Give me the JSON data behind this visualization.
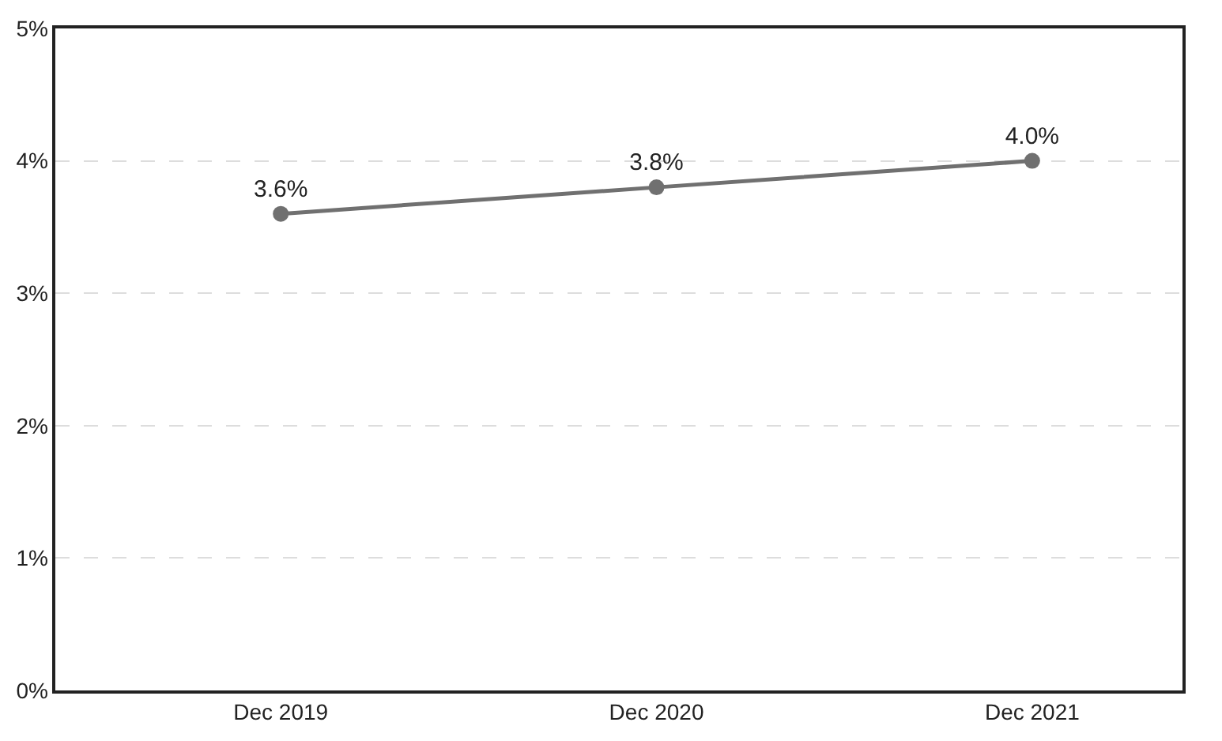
{
  "chart_data": {
    "type": "line",
    "categories": [
      "Dec 2019",
      "Dec 2020",
      "Dec 2021"
    ],
    "series": [
      {
        "color": "#707070",
        "values": [
          3.6,
          3.8,
          4.0
        ],
        "value_labels": [
          "3.6%",
          "3.8%",
          "4.0%"
        ]
      }
    ],
    "ylim": [
      0,
      5
    ],
    "yticks": [
      {
        "value": 0,
        "label": "0%"
      },
      {
        "value": 1,
        "label": "1%"
      },
      {
        "value": 2,
        "label": "2%"
      },
      {
        "value": 3,
        "label": "3%"
      },
      {
        "value": 4,
        "label": "4%"
      },
      {
        "value": 5,
        "label": "5%"
      }
    ],
    "grid": "y",
    "marker": "circle",
    "line_style": "solid",
    "legend": false
  }
}
